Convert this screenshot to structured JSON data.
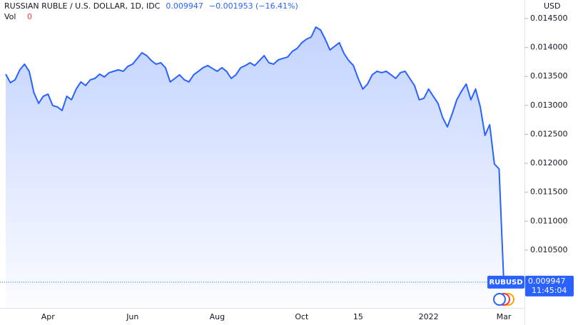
{
  "chart_data": {
    "type": "line",
    "title": "RUSSIAN RUBLE / U.S. DOLLAR, 1D, IDC",
    "last": "0.009947",
    "change": "−0.001953 (−16.41%)",
    "volume_label": "Vol",
    "volume": "0",
    "y_axis_label": "USD",
    "price_tag": {
      "symbol": "RUBUSD",
      "price": "0.009947",
      "time": "11:45:04"
    },
    "color": "#2962ff",
    "grid": false,
    "categories": [
      null,
      null,
      null,
      null,
      null,
      null,
      null,
      null,
      null,
      "Apr",
      null,
      null,
      null,
      null,
      null,
      null,
      null,
      null,
      null,
      null,
      null,
      null,
      null,
      null,
      null,
      null,
      null,
      "Jun",
      null,
      null,
      null,
      null,
      null,
      null,
      null,
      null,
      null,
      null,
      null,
      null,
      null,
      null,
      null,
      null,
      null,
      "Aug",
      null,
      null,
      null,
      null,
      null,
      null,
      null,
      null,
      null,
      null,
      null,
      null,
      null,
      null,
      null,
      null,
      null,
      "Oct",
      null,
      null,
      null,
      null,
      null,
      null,
      null,
      null,
      null,
      null,
      null,
      "15",
      null,
      null,
      null,
      null,
      null,
      null,
      null,
      null,
      null,
      null,
      null,
      null,
      null,
      null,
      "2022",
      null,
      null,
      null,
      null,
      null,
      null,
      null,
      null,
      null,
      null,
      null,
      null,
      null,
      null,
      null,
      "Mar"
    ],
    "values": [
      0.01354,
      0.013392,
      0.013442,
      0.013614,
      0.013712,
      0.013589,
      0.01322,
      0.013035,
      0.013158,
      0.013195,
      0.012998,
      0.012974,
      0.012912,
      0.013158,
      0.013097,
      0.013282,
      0.013405,
      0.013343,
      0.013442,
      0.013466,
      0.01354,
      0.013491,
      0.013565,
      0.013589,
      0.013614,
      0.013589,
      0.013675,
      0.013712,
      0.013811,
      0.013909,
      0.01386,
      0.013774,
      0.013712,
      0.013737,
      0.013651,
      0.013405,
      0.013466,
      0.013528,
      0.013442,
      0.013405,
      0.013528,
      0.013589,
      0.013651,
      0.013688,
      0.013638,
      0.013589,
      0.013651,
      0.013589,
      0.013466,
      0.013528,
      0.013651,
      0.013688,
      0.013737,
      0.013688,
      0.013774,
      0.01386,
      0.013737,
      0.013712,
      0.013786,
      0.013811,
      0.013835,
      0.013934,
      0.013983,
      0.014082,
      0.014143,
      0.01418,
      0.014352,
      0.014303,
      0.014143,
      0.013958,
      0.01402,
      0.014082,
      0.013897,
      0.013774,
      0.013688,
      0.013466,
      0.013282,
      0.013368,
      0.013528,
      0.013589,
      0.013565,
      0.013589,
      0.013528,
      0.013466,
      0.013565,
      0.013589,
      0.013466,
      0.013343,
      0.013097,
      0.013122,
      0.013282,
      0.013158,
      0.013035,
      0.012789,
      0.012629,
      0.012851,
      0.013097,
      0.013245,
      0.013368,
      0.013097,
      0.013282,
      0.012974,
      0.012482,
      0.012666,
      0.011989,
      0.011903,
      0.009947
    ],
    "ylim": [
      0.009503,
      0.01482
    ],
    "yticks": [
      {
        "value": 0.0105,
        "label": "0.010500"
      },
      {
        "value": 0.011,
        "label": "0.011000"
      },
      {
        "value": 0.0115,
        "label": "0.011500"
      },
      {
        "value": 0.012,
        "label": "0.012000"
      },
      {
        "value": 0.0125,
        "label": "0.012500"
      },
      {
        "value": 0.013,
        "label": "0.013000"
      },
      {
        "value": 0.0135,
        "label": "0.013500"
      },
      {
        "value": 0.014,
        "label": "0.014000"
      },
      {
        "value": 0.0145,
        "label": "0.014500"
      }
    ]
  }
}
